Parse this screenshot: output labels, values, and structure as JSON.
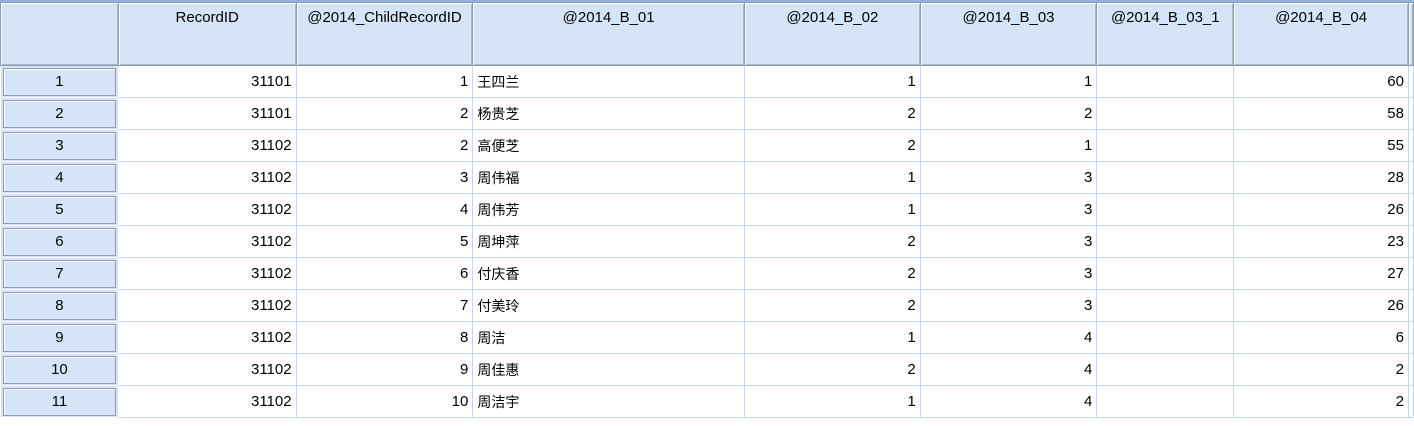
{
  "columns": [
    "",
    "RecordID",
    "@2014_ChildRecordID",
    "@2014_B_01",
    "@2014_B_02",
    "@2014_B_03",
    "@2014_B_03_1",
    "@2014_B_04"
  ],
  "rows": [
    [
      "1",
      "31101",
      "1",
      "王四兰",
      "1",
      "1",
      "",
      "60"
    ],
    [
      "2",
      "31101",
      "2",
      "杨贵芝",
      "2",
      "2",
      "",
      "58"
    ],
    [
      "3",
      "31102",
      "2",
      "高便芝",
      "2",
      "1",
      "",
      "55"
    ],
    [
      "4",
      "31102",
      "3",
      "周伟福",
      "1",
      "3",
      "",
      "28"
    ],
    [
      "5",
      "31102",
      "4",
      "周伟芳",
      "1",
      "3",
      "",
      "26"
    ],
    [
      "6",
      "31102",
      "5",
      "周坤萍",
      "2",
      "3",
      "",
      "23"
    ],
    [
      "7",
      "31102",
      "6",
      "付庆香",
      "2",
      "3",
      "",
      "27"
    ],
    [
      "8",
      "31102",
      "7",
      "付美玲",
      "2",
      "3",
      "",
      "26"
    ],
    [
      "9",
      "31102",
      "8",
      "周洁",
      "1",
      "4",
      "",
      "6"
    ],
    [
      "10",
      "31102",
      "9",
      "周佳惠",
      "2",
      "4",
      "",
      "2"
    ],
    [
      "11",
      "31102",
      "10",
      "周洁宇",
      "1",
      "4",
      "",
      "2"
    ]
  ]
}
